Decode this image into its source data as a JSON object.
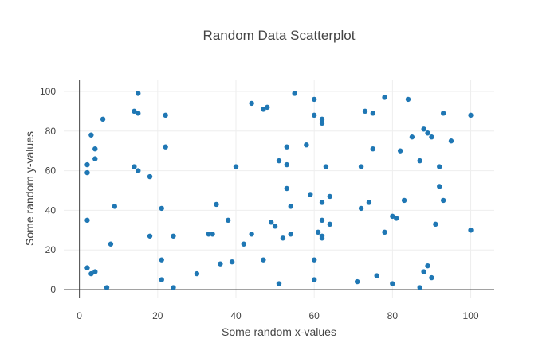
{
  "chart_data": {
    "type": "scatter",
    "title": "Random Data Scatterplot",
    "xlabel": "Some random x-values",
    "ylabel": "Some random y-values",
    "xlim": [
      -4,
      106
    ],
    "ylim": [
      -4,
      106
    ],
    "x_ticks": [
      0,
      20,
      40,
      60,
      80,
      100
    ],
    "y_ticks": [
      0,
      20,
      40,
      60,
      80,
      100
    ],
    "grid": true,
    "marker_color": "#1f77b4",
    "x": [
      2,
      2,
      2,
      2,
      3,
      3,
      4,
      4,
      4,
      6,
      7,
      8,
      9,
      14,
      14,
      15,
      15,
      15,
      18,
      18,
      21,
      21,
      21,
      22,
      22,
      24,
      24,
      30,
      33,
      34,
      35,
      36,
      38,
      39,
      40,
      42,
      44,
      44,
      47,
      47,
      48,
      49,
      50,
      51,
      51,
      52,
      53,
      53,
      53,
      54,
      54,
      55,
      58,
      59,
      60,
      60,
      60,
      60,
      61,
      62,
      62,
      62,
      62,
      62,
      62,
      63,
      64,
      64,
      71,
      72,
      72,
      73,
      74,
      75,
      75,
      76,
      78,
      78,
      80,
      80,
      81,
      82,
      83,
      84,
      85,
      87,
      87,
      88,
      88,
      89,
      89,
      90,
      90,
      91,
      92,
      92,
      93,
      93,
      95,
      100,
      100
    ],
    "y": [
      63,
      59,
      35,
      11,
      78,
      8,
      71,
      66,
      9,
      86,
      1,
      23,
      42,
      90,
      62,
      99,
      89,
      60,
      57,
      27,
      41,
      15,
      5,
      88,
      72,
      27,
      1,
      8,
      28,
      28,
      43,
      13,
      35,
      14,
      62,
      23,
      94,
      28,
      91,
      15,
      92,
      34,
      32,
      65,
      3,
      26,
      72,
      63,
      51,
      42,
      28,
      99,
      73,
      48,
      96,
      88,
      15,
      5,
      29,
      86,
      84,
      44,
      35,
      27,
      26,
      62,
      47,
      33,
      4,
      62,
      41,
      90,
      44,
      89,
      71,
      7,
      97,
      29,
      37,
      3,
      36,
      70,
      45,
      96,
      77,
      65,
      1,
      81,
      9,
      79,
      12,
      77,
      6,
      33,
      62,
      52,
      89,
      45,
      75,
      88,
      30
    ]
  }
}
